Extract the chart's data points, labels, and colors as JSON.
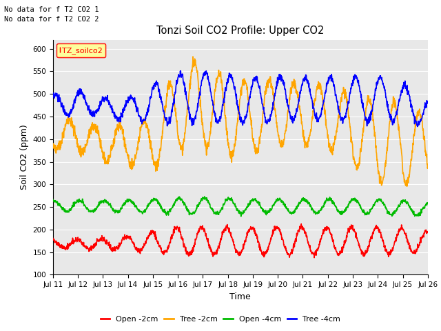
{
  "title": "Tonzi Soil CO2 Profile: Upper CO2",
  "xlabel": "Time",
  "ylabel": "Soil CO2 (ppm)",
  "ylim": [
    100,
    620
  ],
  "yticks": [
    100,
    150,
    200,
    250,
    300,
    350,
    400,
    450,
    500,
    550,
    600
  ],
  "annotations": [
    "No data for f T2 CO2 1",
    "No data for f T2 CO2 2"
  ],
  "legend_label": "TZ_soilco2",
  "legend_entries": [
    "Open -2cm",
    "Tree -2cm",
    "Open -4cm",
    "Tree -4cm"
  ],
  "line_colors": [
    "#ff0000",
    "#ffa500",
    "#00bb00",
    "#0000ff"
  ],
  "bg_color": "#e8e8e8",
  "grid_color": "#ffffff",
  "x_start": 11,
  "x_end": 26,
  "xtick_positions": [
    11,
    12,
    13,
    14,
    15,
    16,
    17,
    18,
    19,
    20,
    21,
    22,
    23,
    24,
    25,
    26
  ],
  "xtick_labels": [
    "Jul 11",
    "Jul 12",
    "Jul 13",
    "Jul 14",
    "Jul 15",
    "Jul 16",
    "Jul 17",
    "Jul 18",
    "Jul 19",
    "Jul 20",
    "Jul 21",
    "Jul 22",
    "Jul 23",
    "Jul 24",
    "Jul 25",
    "Jul 26"
  ]
}
